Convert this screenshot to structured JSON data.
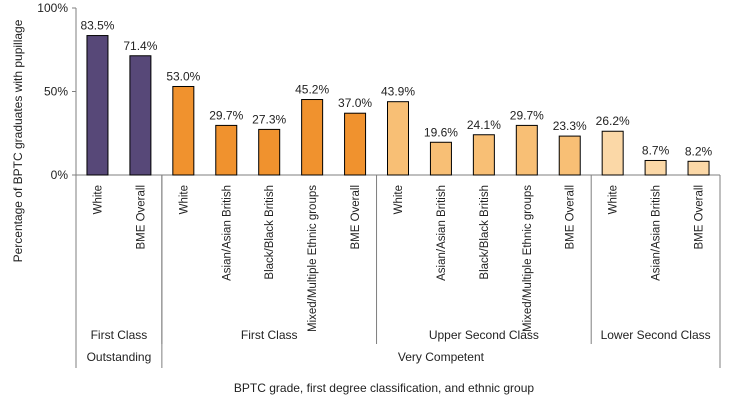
{
  "chart_data": {
    "type": "bar",
    "ylabel": "Percentage of BPTC graduates with pupillage",
    "xlabel": "BPTC grade, first degree classification, and ethnic group",
    "yticks": [
      "0%",
      "50%",
      "100%"
    ],
    "ylim": [
      0,
      100
    ],
    "grid": false,
    "legend": "none",
    "bars": [
      {
        "label": "White",
        "value": 83.5,
        "value_label": "83.5%",
        "color": "#574878"
      },
      {
        "label": "BME Overall",
        "value": 71.4,
        "value_label": "71.4%",
        "color": "#574878"
      },
      {
        "label": "White",
        "value": 53.0,
        "value_label": "53.0%",
        "color": "#f0922e"
      },
      {
        "label": "Asian/Asian British",
        "value": 29.7,
        "value_label": "29.7%",
        "color": "#f0922e"
      },
      {
        "label": "Black/Black British",
        "value": 27.3,
        "value_label": "27.3%",
        "color": "#f0922e"
      },
      {
        "label": "Mixed/Multiple Ethnic groups",
        "value": 45.2,
        "value_label": "45.2%",
        "color": "#f0922e"
      },
      {
        "label": "BME Overall",
        "value": 37.0,
        "value_label": "37.0%",
        "color": "#f0922e"
      },
      {
        "label": "White",
        "value": 43.9,
        "value_label": "43.9%",
        "color": "#f8bf75"
      },
      {
        "label": "Asian/Asian British",
        "value": 19.6,
        "value_label": "19.6%",
        "color": "#f8bf75"
      },
      {
        "label": "Black/Black British",
        "value": 24.1,
        "value_label": "24.1%",
        "color": "#f8bf75"
      },
      {
        "label": "Mixed/Multiple Ethnic groups",
        "value": 29.7,
        "value_label": "29.7%",
        "color": "#f8bf75"
      },
      {
        "label": "BME Overall",
        "value": 23.3,
        "value_label": "23.3%",
        "color": "#f8bf75"
      },
      {
        "label": "White",
        "value": 26.2,
        "value_label": "26.2%",
        "color": "#fbd8a7"
      },
      {
        "label": "Asian/Asian British",
        "value": 8.7,
        "value_label": "8.7%",
        "color": "#fbd8a7"
      },
      {
        "label": "BME Overall",
        "value": 8.2,
        "value_label": "8.2%",
        "color": "#fbd8a7"
      }
    ],
    "degree_groups": [
      {
        "label": "First Class",
        "count": 2
      },
      {
        "label": "First Class",
        "count": 5
      },
      {
        "label": "Upper Second Class",
        "count": 5
      },
      {
        "label": "Lower Second Class",
        "count": 3
      }
    ],
    "grade_groups": [
      {
        "label": "Outstanding",
        "count": 2
      },
      {
        "label": "Very Competent",
        "count": 13
      }
    ]
  }
}
